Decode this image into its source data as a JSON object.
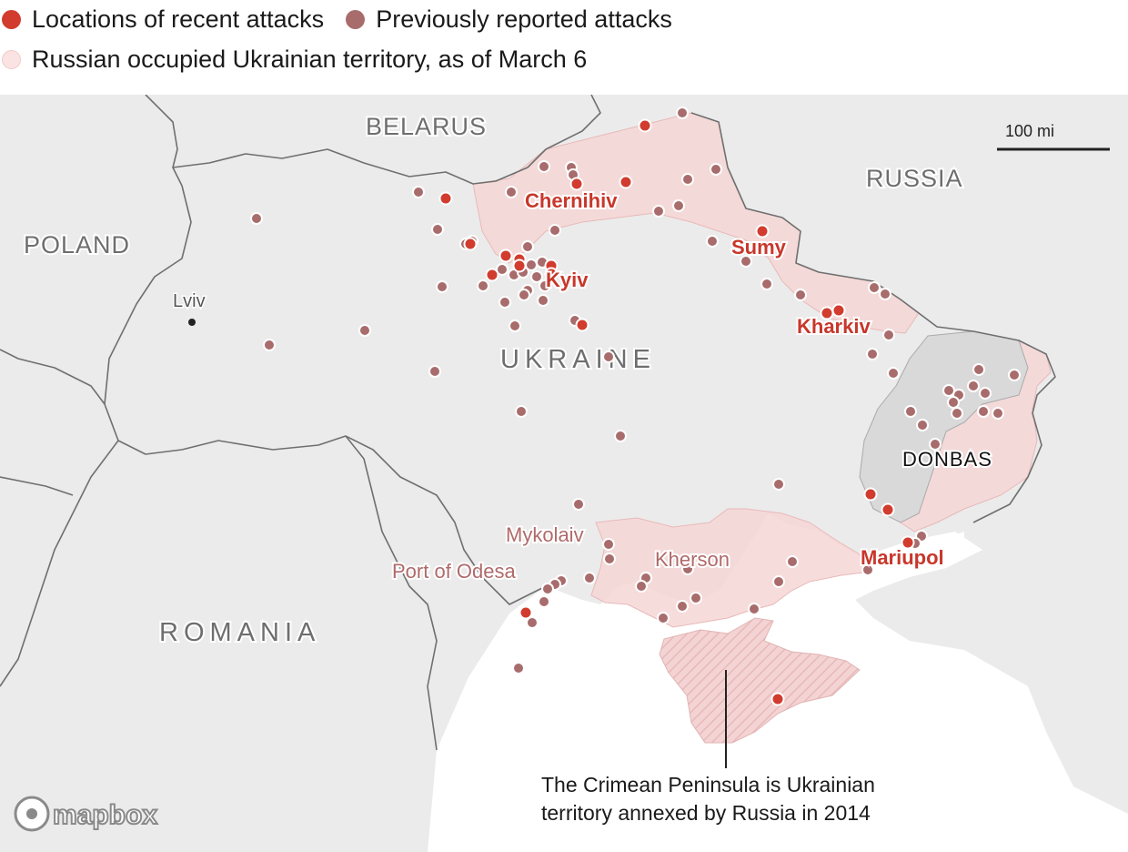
{
  "legend": {
    "recent": {
      "label": "Locations of recent attacks",
      "color": "#d13c2e"
    },
    "previous": {
      "label": "Previously reported attacks",
      "color": "#a86c6c"
    },
    "occupied": {
      "label": "Russian occupied Ukrainian territory, as of March 6",
      "color": "#f8dede"
    }
  },
  "map": {
    "countries": {
      "belarus": "BELARUS",
      "russia": "RUSSIA",
      "poland": "POLAND",
      "ukraine": "UKRAINE",
      "romania": "ROMANIA"
    },
    "regions": {
      "donbas": "DONBAS"
    },
    "cities": {
      "lviv": "Lviv",
      "kyiv": "Kyiv",
      "chernihiv": "Chernihiv",
      "sumy": "Sumy",
      "kharkiv": "Kharkiv",
      "mariupol": "Mariupol",
      "mykolaiv": "Mykolaiv",
      "kherson": "Kherson",
      "odesa": "Port of Odesa"
    },
    "scale": "100 mi",
    "annotation": {
      "line1": "The Crimean Peninsula is Ukrainian",
      "line2": "territory annexed by Russia in 2014"
    },
    "attribution": "mapbox",
    "colors": {
      "land": "#ebebeb",
      "sea": "#ffffff",
      "occupied": "#f6d6d6",
      "donbas": "#dcdcdc",
      "border": "#777777",
      "recent_label": "#c8372b",
      "minor_label": "#b06a6a"
    }
  }
}
